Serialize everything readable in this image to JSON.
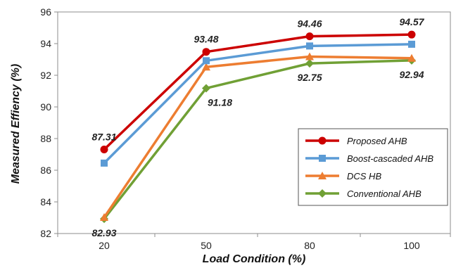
{
  "chart_data": {
    "type": "line",
    "xlabel": "Load Condition (%)",
    "ylabel": "Measured Effiency (%)",
    "categories": [
      "20",
      "50",
      "80",
      "100"
    ],
    "ylim": [
      82,
      96
    ],
    "yticks": [
      "82",
      "84",
      "86",
      "88",
      "90",
      "92",
      "94",
      "96"
    ],
    "grid": false,
    "legend_position": "bottom-right",
    "series": [
      {
        "name": "Proposed AHB",
        "values": [
          87.31,
          93.48,
          94.46,
          94.57
        ],
        "color": "#cc0000",
        "marker": "circle"
      },
      {
        "name": "Boost-cascaded AHB",
        "values": [
          86.45,
          92.92,
          93.85,
          93.96
        ],
        "color": "#5b9bd5",
        "marker": "square"
      },
      {
        "name": "DCS HB",
        "values": [
          83.02,
          92.52,
          93.18,
          93.08
        ],
        "color": "#ed7d31",
        "marker": "triangle"
      },
      {
        "name": "Conventional AHB",
        "values": [
          82.93,
          91.18,
          92.75,
          92.94
        ],
        "color": "#70a035",
        "marker": "diamond"
      }
    ],
    "data_labels": [
      {
        "series": 0,
        "index": 0,
        "text": "87.31",
        "pos": "above"
      },
      {
        "series": 0,
        "index": 1,
        "text": "93.48",
        "pos": "above"
      },
      {
        "series": 0,
        "index": 2,
        "text": "94.46",
        "pos": "above"
      },
      {
        "series": 0,
        "index": 3,
        "text": "94.57",
        "pos": "above"
      },
      {
        "series": 3,
        "index": 0,
        "text": "82.93",
        "pos": "below"
      },
      {
        "series": 3,
        "index": 1,
        "text": "91.18",
        "pos": "below-right"
      },
      {
        "series": 3,
        "index": 2,
        "text": "92.75",
        "pos": "below"
      },
      {
        "series": 3,
        "index": 3,
        "text": "92.94",
        "pos": "below"
      }
    ]
  }
}
